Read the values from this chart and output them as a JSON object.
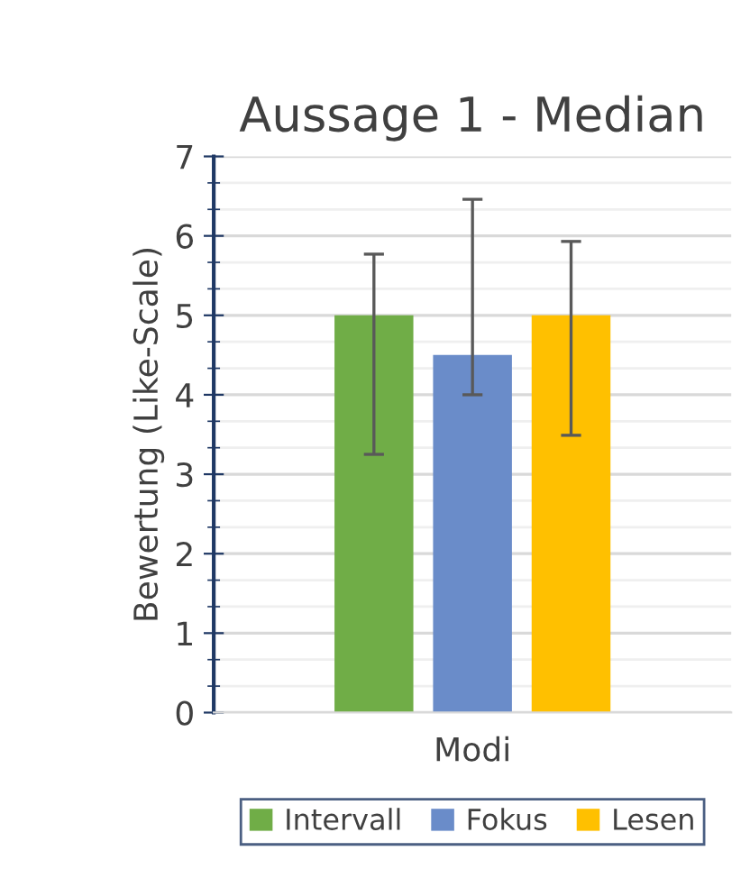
{
  "chart_data": {
    "type": "bar",
    "title": "Aussage 1 - Median",
    "xlabel": "Modi",
    "ylabel": "Bewertung (Like-Scale)",
    "categories": [
      null
    ],
    "series": [
      {
        "name": "Intervall",
        "color": "#70ad47",
        "values": [
          5
        ],
        "errors": [
          [
            3.25,
            5.77
          ]
        ]
      },
      {
        "name": "Fokus",
        "color": "#6a8cc9",
        "values": [
          4.5
        ],
        "errors": [
          [
            4.0,
            6.46
          ]
        ]
      },
      {
        "name": "Lesen",
        "color": "#ffc000",
        "values": [
          5
        ],
        "errors": [
          [
            3.49,
            5.93
          ]
        ]
      }
    ],
    "ylim": [
      0,
      7
    ],
    "yticks": [
      0,
      1,
      2,
      3,
      4,
      5,
      6,
      7
    ],
    "grid": "y",
    "legend": "bottom"
  }
}
